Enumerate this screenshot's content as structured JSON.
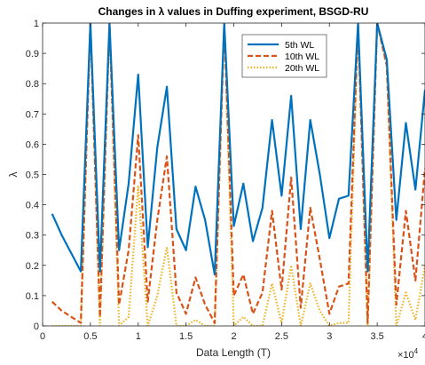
{
  "chart_data": {
    "type": "line",
    "title": "Changes in λ values in Duffing experiment, BSGD-RU",
    "xlabel": "Data Length (T)",
    "ylabel": "λ",
    "x_exponent_label": "×10",
    "x_exponent_power": "4",
    "xlim": [
      0,
      40000
    ],
    "ylim": [
      0,
      1
    ],
    "x_tick_values": [
      0,
      5000,
      10000,
      15000,
      20000,
      25000,
      30000,
      35000,
      40000
    ],
    "x_tick_labels": [
      "0",
      "0.5",
      "1",
      "1.5",
      "2",
      "2.5",
      "3",
      "3.5",
      "4"
    ],
    "y_tick_values": [
      0,
      0.1,
      0.2,
      0.3,
      0.4,
      0.5,
      0.6,
      0.7,
      0.8,
      0.9,
      1
    ],
    "y_tick_labels": [
      "0",
      "0.1",
      "0.2",
      "0.3",
      "0.4",
      "0.5",
      "0.6",
      "0.7",
      "0.8",
      "0.9",
      "1"
    ],
    "grid": false,
    "legend_position": "top-right",
    "x": [
      1000,
      2000,
      3000,
      4000,
      5000,
      6000,
      7000,
      8000,
      9000,
      10000,
      11000,
      12000,
      13000,
      14000,
      15000,
      16000,
      17000,
      18000,
      19000,
      20000,
      21000,
      22000,
      23000,
      24000,
      25000,
      26000,
      27000,
      28000,
      29000,
      30000,
      31000,
      32000,
      33000,
      34000,
      35000,
      36000,
      37000,
      38000,
      39000,
      40000
    ],
    "series": [
      {
        "name": "5th WL",
        "color": "#0072BD",
        "style": "solid",
        "values": [
          0.37,
          0.3,
          0.24,
          0.18,
          1.0,
          0.18,
          1.0,
          0.25,
          0.47,
          0.83,
          0.26,
          0.59,
          0.79,
          0.32,
          0.25,
          0.46,
          0.35,
          0.17,
          1.0,
          0.33,
          0.47,
          0.28,
          0.39,
          0.68,
          0.43,
          0.76,
          0.32,
          0.68,
          0.5,
          0.29,
          0.42,
          0.43,
          1.0,
          0.18,
          1.0,
          0.88,
          0.35,
          0.67,
          0.45,
          0.78
        ]
      },
      {
        "name": "10th WL",
        "color": "#D95319",
        "style": "dashed",
        "values": [
          0.08,
          0.05,
          0.03,
          0.01,
          1.0,
          0.03,
          1.0,
          0.07,
          0.25,
          0.63,
          0.08,
          0.35,
          0.56,
          0.11,
          0.04,
          0.16,
          0.07,
          0.01,
          1.0,
          0.1,
          0.17,
          0.04,
          0.11,
          0.38,
          0.12,
          0.49,
          0.06,
          0.39,
          0.22,
          0.04,
          0.13,
          0.14,
          1.0,
          0.01,
          1.0,
          0.86,
          0.07,
          0.38,
          0.15,
          0.52
        ]
      },
      {
        "name": "20th WL",
        "color": "#EDB120",
        "style": "dotted",
        "values": [
          0.0,
          0.0,
          0.0,
          0.0,
          1.0,
          0.0,
          1.0,
          0.0,
          0.03,
          0.46,
          0.0,
          0.1,
          0.26,
          0.0,
          0.0,
          0.02,
          0.0,
          0.0,
          1.0,
          0.0,
          0.03,
          0.0,
          0.0,
          0.14,
          0.01,
          0.2,
          0.0,
          0.14,
          0.05,
          0.0,
          0.01,
          0.01,
          1.0,
          0.0,
          1.0,
          0.86,
          0.0,
          0.11,
          0.02,
          0.2
        ]
      }
    ]
  }
}
